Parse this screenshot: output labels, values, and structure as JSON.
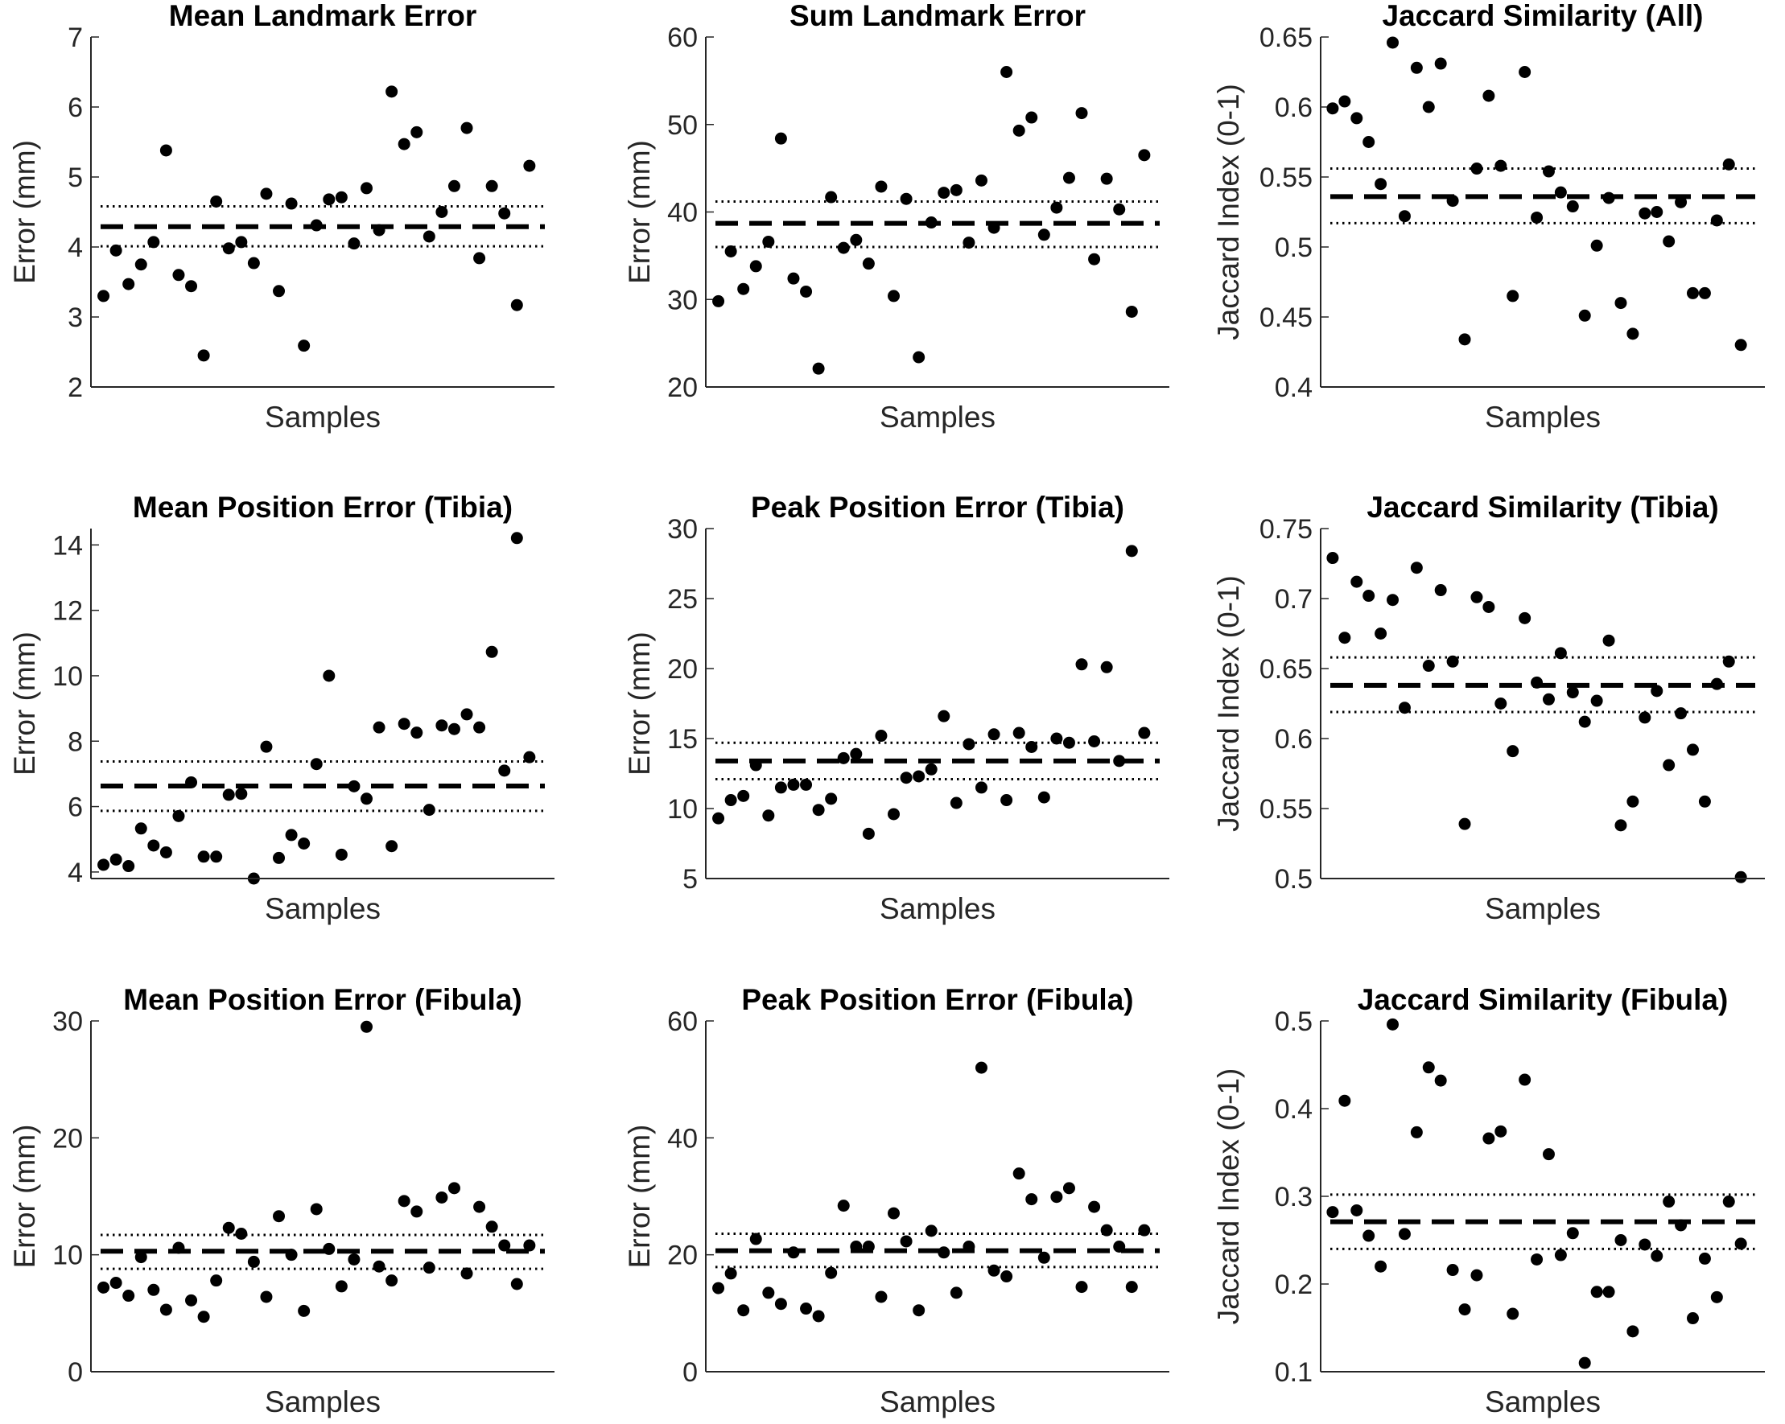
{
  "chart_data": [
    {
      "type": "scatter",
      "title": "Mean Landmark Error",
      "xlabel": "Samples",
      "ylabel": "Error (mm)",
      "ylim": [
        2,
        7
      ],
      "yticks": [
        "2",
        "3",
        "4",
        "5",
        "6",
        "7"
      ],
      "xlim": [
        0,
        37
      ],
      "mean": 4.29,
      "ci": [
        4.01,
        4.58
      ],
      "points": [
        3.3,
        3.95,
        3.47,
        3.75,
        4.07,
        5.38,
        3.6,
        3.44,
        2.45,
        4.65,
        3.98,
        4.07,
        3.77,
        4.76,
        3.37,
        4.62,
        2.59,
        4.31,
        4.68,
        4.71,
        4.05,
        4.84,
        4.24,
        6.22,
        5.47,
        5.64,
        4.15,
        4.5,
        4.87,
        5.7,
        3.84,
        4.87,
        4.48,
        3.17,
        5.16
      ]
    },
    {
      "type": "scatter",
      "title": "Sum Landmark Error",
      "xlabel": "Samples",
      "ylabel": "Error (mm)",
      "ylim": [
        20,
        60
      ],
      "yticks": [
        "20",
        "30",
        "40",
        "50",
        "60"
      ],
      "xlim": [
        0,
        37
      ],
      "mean": 38.7,
      "ci": [
        36.0,
        41.2
      ],
      "points": [
        29.8,
        35.5,
        31.2,
        33.8,
        36.6,
        48.4,
        32.4,
        30.9,
        22.1,
        41.7,
        35.9,
        36.8,
        34.1,
        42.9,
        30.4,
        41.5,
        23.4,
        38.8,
        42.2,
        42.5,
        36.5,
        43.6,
        38.2,
        56.0,
        49.3,
        50.8,
        37.4,
        40.5,
        43.9,
        51.3,
        34.6,
        43.8,
        40.3,
        28.6,
        46.5
      ]
    },
    {
      "type": "scatter",
      "title": "Jaccard Similarity (All)",
      "xlabel": "Samples",
      "ylabel": "Jaccard Index (0-1)",
      "ylim": [
        0.4,
        0.65
      ],
      "yticks": [
        "0.4",
        "0.45",
        "0.5",
        "0.55",
        "0.6",
        "0.65"
      ],
      "xlim": [
        0,
        37
      ],
      "mean": 0.536,
      "ci": [
        0.517,
        0.556
      ],
      "points": [
        0.599,
        0.604,
        0.592,
        0.575,
        0.545,
        0.646,
        0.522,
        0.628,
        0.6,
        0.631,
        0.533,
        0.434,
        0.556,
        0.608,
        0.558,
        0.465,
        0.625,
        0.521,
        0.554,
        0.539,
        0.529,
        0.451,
        0.501,
        0.535,
        0.46,
        0.438,
        0.524,
        0.525,
        0.504,
        0.532,
        0.467,
        0.467,
        0.519,
        0.559,
        0.43
      ]
    },
    {
      "type": "scatter",
      "title": "Mean Position Error (Tibia)",
      "xlabel": "Samples",
      "ylabel": "Error (mm)",
      "ylim": [
        3.8,
        14.5
      ],
      "yticks": [
        "4",
        "6",
        "8",
        "10",
        "12",
        "14"
      ],
      "tick_values": [
        4,
        6,
        8,
        10,
        12,
        14
      ],
      "xlim": [
        0,
        37
      ],
      "mean": 6.63,
      "ci": [
        5.87,
        7.38
      ],
      "points": [
        4.22,
        4.38,
        4.18,
        5.33,
        4.81,
        4.6,
        5.71,
        6.74,
        4.47,
        4.47,
        6.36,
        6.39,
        3.8,
        7.83,
        4.43,
        5.13,
        4.87,
        7.3,
        10.0,
        4.53,
        6.62,
        6.24,
        8.42,
        4.79,
        8.53,
        8.26,
        5.9,
        8.48,
        8.37,
        8.82,
        8.42,
        10.73,
        7.1,
        14.21,
        7.51
      ]
    },
    {
      "type": "scatter",
      "title": "Peak Position Error (Tibia)",
      "xlabel": "Samples",
      "ylabel": "Error (mm)",
      "ylim": [
        5,
        30
      ],
      "yticks": [
        "5",
        "10",
        "15",
        "20",
        "25",
        "30"
      ],
      "xlim": [
        0,
        37
      ],
      "mean": 13.4,
      "ci": [
        12.1,
        14.7
      ],
      "points": [
        9.3,
        10.6,
        10.9,
        13.1,
        9.5,
        11.5,
        11.7,
        11.7,
        9.9,
        10.7,
        13.6,
        13.9,
        8.2,
        15.2,
        9.6,
        12.2,
        12.3,
        12.8,
        16.6,
        10.4,
        14.6,
        11.5,
        15.3,
        10.6,
        15.4,
        14.4,
        10.8,
        15.0,
        14.7,
        20.3,
        14.8,
        20.1,
        13.4,
        28.4,
        15.4
      ]
    },
    {
      "type": "scatter",
      "title": "Jaccard Similarity (Tibia)",
      "xlabel": "Samples",
      "ylabel": "Jaccard Index (0-1)",
      "ylim": [
        0.5,
        0.75
      ],
      "yticks": [
        "0.5",
        "0.55",
        "0.6",
        "0.65",
        "0.7",
        "0.75"
      ],
      "xlim": [
        0,
        37
      ],
      "mean": 0.638,
      "ci": [
        0.619,
        0.658
      ],
      "points": [
        0.729,
        0.672,
        0.712,
        0.702,
        0.675,
        0.699,
        0.622,
        0.722,
        0.652,
        0.706,
        0.655,
        0.539,
        0.701,
        0.694,
        0.625,
        0.591,
        0.686,
        0.64,
        0.628,
        0.661,
        0.633,
        0.612,
        0.627,
        0.67,
        0.538,
        0.555,
        0.615,
        0.634,
        0.581,
        0.618,
        0.592,
        0.555,
        0.639,
        0.655,
        0.501
      ]
    },
    {
      "type": "scatter",
      "title": "Mean Position Error (Fibula)",
      "xlabel": "Samples",
      "ylabel": "Error (mm)",
      "ylim": [
        0,
        30
      ],
      "yticks": [
        "0",
        "10",
        "20",
        "30"
      ],
      "xlim": [
        0,
        37
      ],
      "mean": 10.3,
      "ci": [
        8.8,
        11.7
      ],
      "points": [
        7.2,
        7.6,
        6.5,
        9.8,
        7.0,
        5.3,
        10.6,
        6.1,
        4.7,
        7.8,
        12.3,
        11.8,
        9.4,
        6.4,
        13.3,
        10.0,
        5.2,
        13.9,
        10.5,
        7.3,
        9.6,
        29.5,
        9.0,
        7.8,
        14.6,
        13.7,
        8.9,
        14.9,
        15.7,
        8.4,
        14.1,
        12.4,
        10.8,
        7.5,
        10.8
      ]
    },
    {
      "type": "scatter",
      "title": "Peak Position Error (Fibula)",
      "xlabel": "Samples",
      "ylabel": "Error (mm)",
      "ylim": [
        0,
        60
      ],
      "yticks": [
        "0",
        "20",
        "40",
        "60"
      ],
      "xlim": [
        0,
        37
      ],
      "mean": 20.7,
      "ci": [
        17.9,
        23.6
      ],
      "points": [
        14.3,
        16.8,
        10.5,
        22.7,
        13.5,
        11.6,
        20.4,
        10.8,
        9.5,
        16.9,
        28.4,
        21.4,
        21.4,
        12.8,
        27.1,
        22.3,
        10.5,
        24.1,
        20.4,
        13.5,
        21.4,
        52.0,
        17.3,
        16.3,
        33.9,
        29.5,
        19.5,
        29.9,
        31.4,
        14.5,
        28.2,
        24.2,
        21.4,
        14.5,
        24.2
      ]
    },
    {
      "type": "scatter",
      "title": "Jaccard Similarity (Fibula)",
      "xlabel": "Samples",
      "ylabel": "Jaccard Index (0-1)",
      "ylim": [
        0.1,
        0.5
      ],
      "yticks": [
        "0.1",
        "0.2",
        "0.3",
        "0.4",
        "0.5"
      ],
      "xlim": [
        0,
        37
      ],
      "mean": 0.271,
      "ci": [
        0.24,
        0.302
      ],
      "points": [
        0.282,
        0.409,
        0.284,
        0.255,
        0.22,
        0.496,
        0.257,
        0.373,
        0.447,
        0.432,
        0.216,
        0.171,
        0.21,
        0.366,
        0.374,
        0.166,
        0.433,
        0.228,
        0.348,
        0.233,
        0.258,
        0.11,
        0.191,
        0.191,
        0.25,
        0.146,
        0.245,
        0.232,
        0.294,
        0.267,
        0.161,
        0.229,
        0.185,
        0.294,
        0.246
      ]
    }
  ]
}
